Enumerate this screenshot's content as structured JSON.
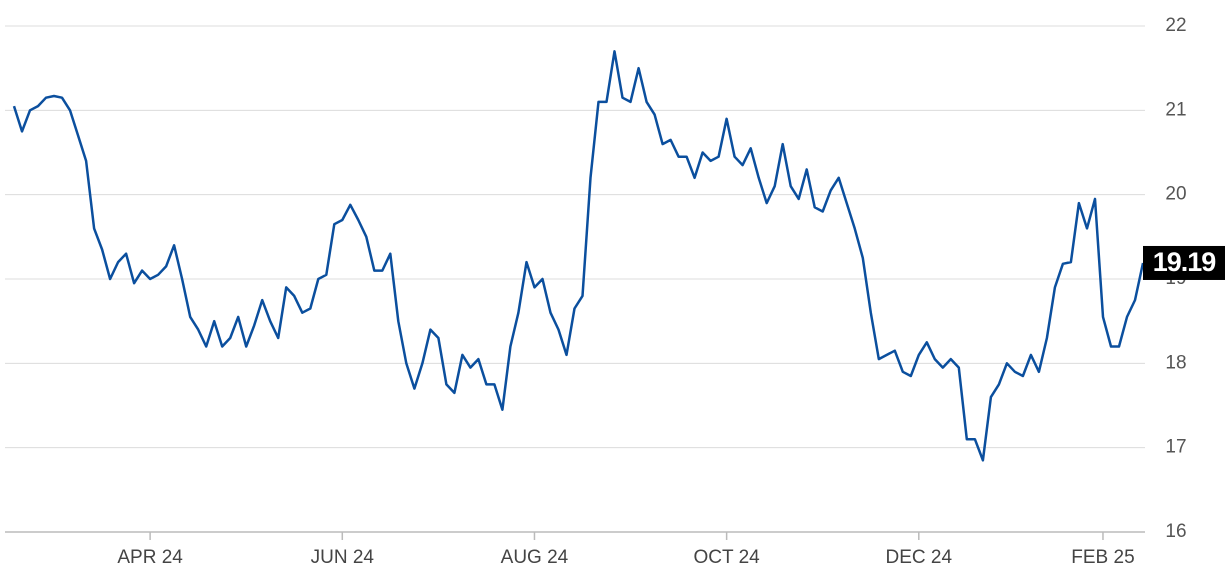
{
  "chart_data": {
    "type": "line",
    "categories": [
      null,
      null,
      null,
      null,
      null,
      null,
      null,
      null,
      null,
      null,
      null,
      null,
      null,
      null,
      null,
      null,
      null,
      "APR 24",
      null,
      null,
      null,
      null,
      null,
      null,
      null,
      null,
      null,
      null,
      null,
      null,
      null,
      null,
      null,
      null,
      null,
      null,
      null,
      null,
      null,
      null,
      null,
      "JUN 24",
      null,
      null,
      null,
      null,
      null,
      null,
      null,
      null,
      null,
      null,
      null,
      null,
      null,
      null,
      null,
      null,
      null,
      null,
      null,
      null,
      null,
      null,
      null,
      "AUG 24",
      null,
      null,
      null,
      null,
      null,
      null,
      null,
      null,
      null,
      null,
      null,
      null,
      null,
      null,
      null,
      null,
      null,
      null,
      null,
      null,
      null,
      null,
      null,
      "OCT 24",
      null,
      null,
      null,
      null,
      null,
      null,
      null,
      null,
      null,
      null,
      null,
      null,
      null,
      null,
      null,
      null,
      null,
      null,
      null,
      null,
      null,
      null,
      null,
      "DEC 24",
      null,
      null,
      null,
      null,
      null,
      null,
      null,
      null,
      null,
      null,
      null,
      null,
      null,
      null,
      null,
      null,
      null,
      null,
      null,
      null,
      null,
      null,
      "FEB 25",
      null,
      null,
      null,
      null,
      null
    ],
    "series": [
      {
        "color": "#0b4f9e",
        "values": [
          21.05,
          20.75,
          21.0,
          21.05,
          21.15,
          21.17,
          21.15,
          21.0,
          20.7,
          20.4,
          19.6,
          19.35,
          19.0,
          19.2,
          19.3,
          18.95,
          19.1,
          19.0,
          19.05,
          19.15,
          19.4,
          19.0,
          18.55,
          18.4,
          18.2,
          18.5,
          18.2,
          18.3,
          18.55,
          18.2,
          18.45,
          18.75,
          18.5,
          18.3,
          18.9,
          18.8,
          18.6,
          18.65,
          19.0,
          19.05,
          19.65,
          19.7,
          19.88,
          19.7,
          19.5,
          19.1,
          19.1,
          19.3,
          18.5,
          18.0,
          17.7,
          18.0,
          18.4,
          18.3,
          17.75,
          17.65,
          18.1,
          17.95,
          18.05,
          17.75,
          17.75,
          17.45,
          18.2,
          18.6,
          19.2,
          18.9,
          19.0,
          18.6,
          18.4,
          18.1,
          18.65,
          18.8,
          20.2,
          21.1,
          21.1,
          21.7,
          21.15,
          21.1,
          21.5,
          21.1,
          20.95,
          20.6,
          20.65,
          20.45,
          20.45,
          20.2,
          20.5,
          20.4,
          20.45,
          20.9,
          20.45,
          20.35,
          20.55,
          20.2,
          19.9,
          20.1,
          20.6,
          20.1,
          19.95,
          20.3,
          19.85,
          19.8,
          20.05,
          20.2,
          19.9,
          19.6,
          19.25,
          18.6,
          18.05,
          18.1,
          18.15,
          17.9,
          17.85,
          18.1,
          18.25,
          18.05,
          17.95,
          18.05,
          17.95,
          17.1,
          17.1,
          16.85,
          17.6,
          17.75,
          18.0,
          17.9,
          17.85,
          18.1,
          17.9,
          18.3,
          18.9,
          19.18,
          19.2,
          19.9,
          19.6,
          19.95,
          18.55,
          18.2,
          18.2,
          18.55,
          18.75,
          19.19
        ]
      }
    ],
    "ylim": [
      16,
      22
    ],
    "yticks": [
      16,
      17,
      18,
      19,
      20,
      21,
      22
    ],
    "grid": true
  }
}
